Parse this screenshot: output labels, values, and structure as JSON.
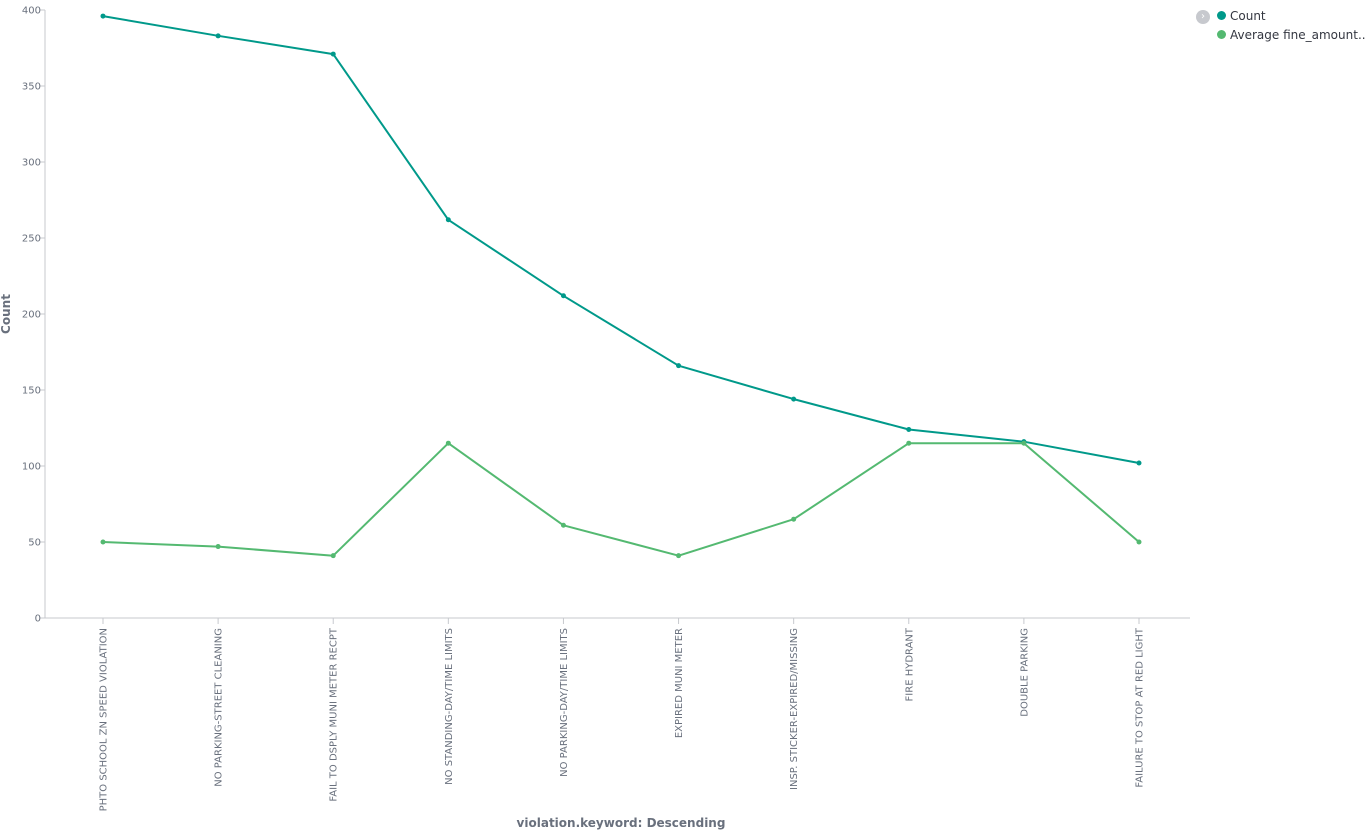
{
  "chart_data": {
    "type": "line",
    "title": "",
    "xlabel": "violation.keyword: Descending",
    "ylabel": "Count",
    "ylim": [
      0,
      400
    ],
    "yticks": [
      0,
      50,
      100,
      150,
      200,
      250,
      300,
      350,
      400
    ],
    "grid": false,
    "legend_position": "top-right",
    "categories": [
      "PHTO SCHOOL ZN SPEED VIOLATION",
      "NO PARKING-STREET CLEANING",
      "FAIL TO DSPLY MUNI METER RECPT",
      "NO STANDING-DAY/TIME LIMITS",
      "NO PARKING-DAY/TIME LIMITS",
      "EXPIRED MUNI METER",
      "INSP. STICKER-EXPIRED/MISSING",
      "FIRE HYDRANT",
      "DOUBLE PARKING",
      "FAILURE TO STOP AT RED LIGHT"
    ],
    "series": [
      {
        "name": "Count",
        "color": "#00998a",
        "values": [
          396,
          383,
          371,
          262,
          212,
          166,
          144,
          124,
          116,
          102
        ]
      },
      {
        "name": "Average fine_amount...",
        "color": "#54b971",
        "values": [
          50,
          47,
          41,
          115,
          61,
          41,
          65,
          115,
          115,
          50
        ]
      }
    ]
  },
  "legend": {
    "toggle_icon": "chevron-right-icon",
    "items": [
      {
        "label": "Count",
        "color": "#00998a"
      },
      {
        "label": "Average fine_amount...",
        "color": "#54b971"
      }
    ]
  }
}
